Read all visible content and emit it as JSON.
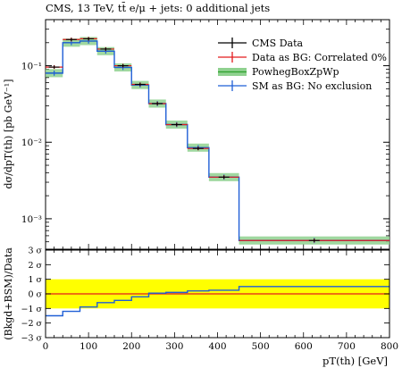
{
  "chart_data": [
    {
      "type": "line",
      "title": "CMS, 13 TeV, tt̄ e/μ + jets: 0 additional jets",
      "ylabel": "dσ/dpT(th) [pb GeV⁻¹]",
      "xlabel": "",
      "x_range": [
        0,
        800
      ],
      "y_scale": "log",
      "ylim": [
        0.0004,
        0.4
      ],
      "y_tick_labels": [
        "10⁻³",
        "10⁻²",
        "10⁻¹"
      ],
      "y_tick_values": [
        0.001,
        0.01,
        0.1
      ],
      "legend_placement": "top-right",
      "bin_edges": [
        0,
        40,
        80,
        120,
        160,
        200,
        240,
        280,
        330,
        380,
        450,
        800
      ],
      "series": [
        {
          "name": "CMS Data",
          "color": "#000000",
          "style": "points",
          "values": [
            0.096,
            0.22,
            0.225,
            0.165,
            0.1,
            0.057,
            0.032,
            0.017,
            0.0083,
            0.0035,
            0.00052
          ]
        },
        {
          "name": "Data as BG: Correlated 0%",
          "color": "#e31a1c",
          "style": "points",
          "values": [
            0.096,
            0.22,
            0.225,
            0.165,
            0.1,
            0.057,
            0.032,
            0.017,
            0.0083,
            0.0035,
            0.00052
          ]
        },
        {
          "name": "PowhegBoxZpWp",
          "color": "#2ca02c",
          "style": "band",
          "values": [
            0.08,
            0.2,
            0.21,
            0.155,
            0.095,
            0.056,
            0.032,
            0.017,
            0.0085,
            0.0035,
            0.00052
          ]
        },
        {
          "name": "SM as BG: No exclusion",
          "color": "#1f5fd6",
          "style": "histogram",
          "values": [
            0.08,
            0.2,
            0.21,
            0.155,
            0.095,
            0.056,
            0.032,
            0.017,
            0.0085,
            0.0035,
            0.00052
          ]
        }
      ]
    },
    {
      "type": "line",
      "ylabel": "(Bkgd+BSM)/Data",
      "xlabel": "pT(th) [GeV]",
      "x_range": [
        0,
        800
      ],
      "ylim": [
        -3,
        3
      ],
      "x_tick_labels": [
        "0",
        "100",
        "200",
        "300",
        "400",
        "500",
        "600",
        "700",
        "800"
      ],
      "x_tick_values": [
        0,
        100,
        200,
        300,
        400,
        500,
        600,
        700,
        800
      ],
      "y_tick_labels": [
        "−3 σ",
        "−2 σ",
        "−1 σ",
        "0 σ",
        "1 σ",
        "2 σ",
        "3 σ"
      ],
      "y_tick_values": [
        -3,
        -2,
        -1,
        0,
        1,
        2,
        3
      ],
      "band": {
        "range": [
          -1,
          1
        ],
        "color": "#ffff00"
      },
      "reference": {
        "value": 0,
        "color": "#e31a1c"
      },
      "bin_edges": [
        0,
        40,
        80,
        120,
        160,
        200,
        240,
        280,
        330,
        380,
        450,
        800
      ],
      "series": [
        {
          "name": "SM as BG: No exclusion",
          "color": "#1f5fd6",
          "values": [
            -1.5,
            -1.2,
            -0.9,
            -0.6,
            -0.45,
            -0.2,
            0.05,
            0.1,
            0.2,
            0.25,
            0.5
          ]
        }
      ]
    }
  ]
}
